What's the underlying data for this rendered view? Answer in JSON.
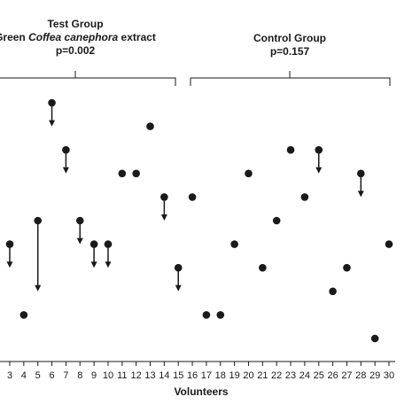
{
  "chart_data": {
    "type": "dot-arrow",
    "groups": [
      {
        "lines": [
          "Test Group",
          [
            "Green ",
            "Coffea canephora",
            " extract"
          ],
          "p=0.002"
        ]
      },
      {
        "lines": [
          "Control Group",
          "p=0.157"
        ]
      }
    ],
    "x_label": "Volunteers",
    "categories": [
      "3",
      "4",
      "5",
      "6",
      "7",
      "8",
      "9",
      "10",
      "11",
      "12",
      "13",
      "14",
      "15",
      "16",
      "17",
      "18",
      "19",
      "20",
      "21",
      "22",
      "23",
      "24",
      "25",
      "26",
      "27",
      "28",
      "29",
      "30"
    ],
    "series": [
      {
        "color": "#1a1a1a",
        "values": [
          5,
          2,
          6,
          11,
          9,
          6,
          5,
          5,
          8,
          8,
          10,
          7,
          4,
          7,
          2,
          2,
          5,
          8,
          4,
          6,
          9,
          7,
          9,
          3,
          4,
          8,
          1,
          5
        ]
      },
      {
        "color": "#1a1a1a",
        "values": [
          4,
          null,
          3,
          10,
          8,
          5,
          4,
          4,
          null,
          null,
          null,
          6,
          3,
          null,
          null,
          null,
          null,
          null,
          null,
          null,
          null,
          null,
          8,
          null,
          null,
          7,
          null,
          null
        ]
      }
    ],
    "ylim": [
      0,
      12
    ]
  }
}
